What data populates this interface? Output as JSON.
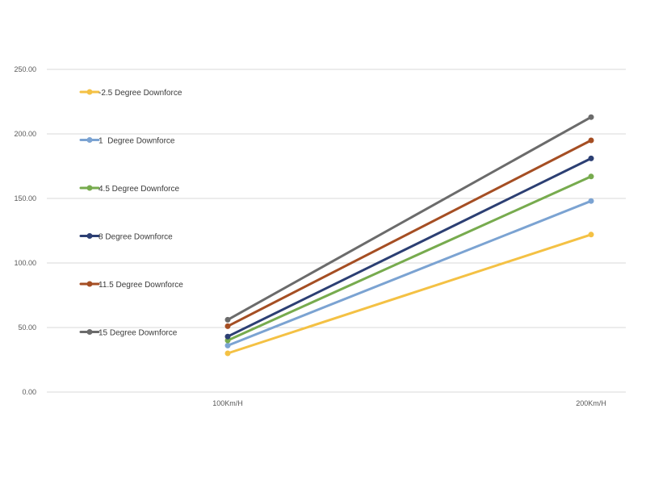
{
  "chart_data": {
    "type": "line",
    "categories": [
      "100Km/H",
      "200Km/H"
    ],
    "ylim": [
      0,
      250
    ],
    "yticks": [
      "0.00",
      "50.00",
      "100.00",
      "150.00",
      "200.00",
      "250.00"
    ],
    "grid": true,
    "legend_position": "left",
    "series": [
      {
        "name": "-2.5 Degree Downforce",
        "values": [
          30,
          122
        ],
        "color": "#F4C144"
      },
      {
        "name": "1  Degree Downforce",
        "values": [
          36,
          148
        ],
        "color": "#7BA3D2"
      },
      {
        "name": "4.5 Degree Downforce",
        "values": [
          40,
          167
        ],
        "color": "#77AB4E"
      },
      {
        "name": "8 Degree Downforce",
        "values": [
          43,
          181
        ],
        "color": "#2C3F73"
      },
      {
        "name": "11.5 Degree Downforce",
        "values": [
          51,
          195
        ],
        "color": "#A54E23"
      },
      {
        "name": "15 Degree Downforce",
        "values": [
          56,
          213
        ],
        "color": "#6B6B6B"
      }
    ]
  }
}
